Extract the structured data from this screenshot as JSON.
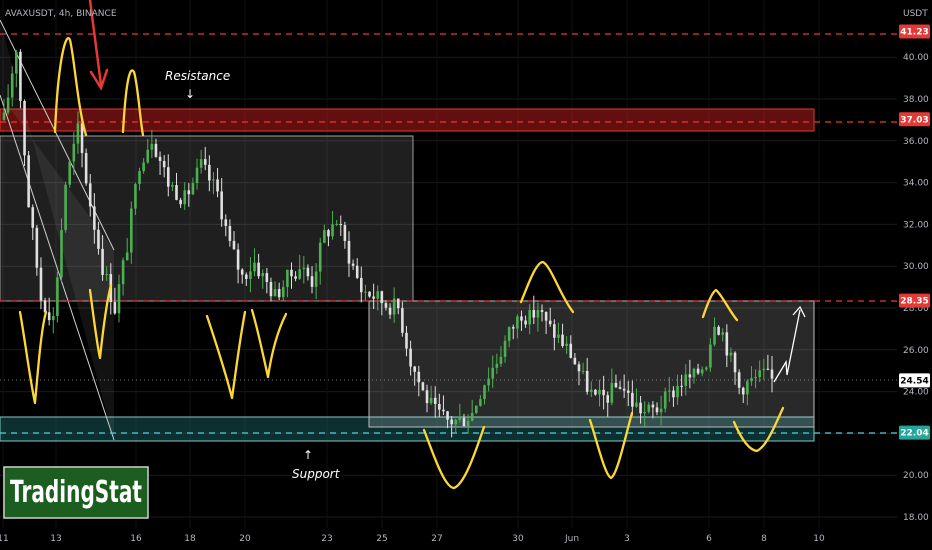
{
  "header": {
    "symbol": "AVAXUSDT, 4h, BINANCE"
  },
  "logo": {
    "text": "TradingStat"
  },
  "colors": {
    "background": "#000000",
    "up": "#4caf50",
    "down": "#e0e0e0",
    "resistance_line": "#e53935",
    "support_line": "#4dd0e1",
    "annotation_curve": "#ffeb3b",
    "resistance_zone": "#b71c1c",
    "support_zone": "#1b5e5f",
    "range_box": "#bdbdbd",
    "logo_bg": "#1b5e20"
  },
  "annotations": {
    "resistance_label": "Resistance",
    "support_label": "Support",
    "arrows": [
      "↓",
      "↑"
    ]
  },
  "chart_data": {
    "type": "candlestick",
    "price_unit": "USDT",
    "ylim": [
      17.5,
      43
    ],
    "yticks": [
      "18.00",
      "20.00",
      "22.00",
      "24.00",
      "26.00",
      "28.00",
      "30.00",
      "32.00",
      "34.00",
      "36.00",
      "38.00",
      "40.00"
    ],
    "xticks": [
      "11",
      "13",
      "16",
      "18",
      "20",
      "23",
      "25",
      "27",
      "30",
      "Jun",
      "3",
      "6",
      "8",
      "10"
    ],
    "price_levels": [
      {
        "label": "41.23",
        "value": 41.23,
        "style": "resistance"
      },
      {
        "label": "37.03",
        "value": 37.03,
        "style": "resistance"
      },
      {
        "label": "28.35",
        "value": 28.35,
        "style": "resistance"
      },
      {
        "label": "22.04",
        "value": 22.04,
        "style": "support"
      },
      {
        "label": "24.54",
        "value": 24.54,
        "style": "current"
      }
    ],
    "zones": [
      {
        "name": "resistance-zone",
        "from": 36.6,
        "to": 37.7
      },
      {
        "name": "support-zone",
        "from": 21.7,
        "to": 22.8
      }
    ],
    "price_path": [
      [
        0,
        37.0
      ],
      [
        3,
        40.5
      ],
      [
        6,
        33.0
      ],
      [
        9,
        28.5
      ],
      [
        12,
        27.5
      ],
      [
        15,
        34.0
      ],
      [
        18,
        36.5
      ],
      [
        21,
        33.0
      ],
      [
        24,
        30.0
      ],
      [
        27,
        28.0
      ],
      [
        30,
        31.0
      ],
      [
        33,
        35.0
      ],
      [
        36,
        36.2
      ],
      [
        40,
        34.0
      ],
      [
        44,
        33.2
      ],
      [
        48,
        34.8
      ],
      [
        52,
        33.5
      ],
      [
        55,
        31.0
      ],
      [
        58,
        29.5
      ],
      [
        61,
        30.2
      ],
      [
        63,
        29.5
      ],
      [
        66,
        28.6
      ],
      [
        69,
        29.4
      ],
      [
        72,
        30.0
      ],
      [
        75,
        29.3
      ],
      [
        78,
        31.5
      ],
      [
        81,
        32.2
      ],
      [
        84,
        30.5
      ],
      [
        87,
        28.9
      ],
      [
        90,
        28.6
      ],
      [
        93,
        28.2
      ],
      [
        96,
        28.0
      ],
      [
        99,
        25.5
      ],
      [
        102,
        24.0
      ],
      [
        105,
        23.0
      ],
      [
        108,
        22.6
      ],
      [
        111,
        22.6
      ],
      [
        114,
        23.0
      ],
      [
        117,
        24.5
      ],
      [
        120,
        25.5
      ],
      [
        123,
        26.8
      ],
      [
        126,
        27.8
      ],
      [
        128,
        27.5
      ],
      [
        130,
        28.0
      ],
      [
        132,
        27.2
      ],
      [
        135,
        26.6
      ],
      [
        138,
        25.8
      ],
      [
        141,
        24.6
      ],
      [
        144,
        23.6
      ],
      [
        147,
        23.8
      ],
      [
        150,
        24.4
      ],
      [
        153,
        23.5
      ],
      [
        156,
        23.0
      ],
      [
        159,
        23.2
      ],
      [
        162,
        23.8
      ],
      [
        165,
        24.5
      ],
      [
        168,
        24.7
      ],
      [
        171,
        25.5
      ],
      [
        173,
        27.5
      ],
      [
        175,
        26.8
      ],
      [
        177,
        25.5
      ],
      [
        179,
        24.2
      ],
      [
        181,
        24.4
      ],
      [
        183,
        24.6
      ],
      [
        185,
        24.8
      ],
      [
        187,
        24.54
      ]
    ]
  }
}
